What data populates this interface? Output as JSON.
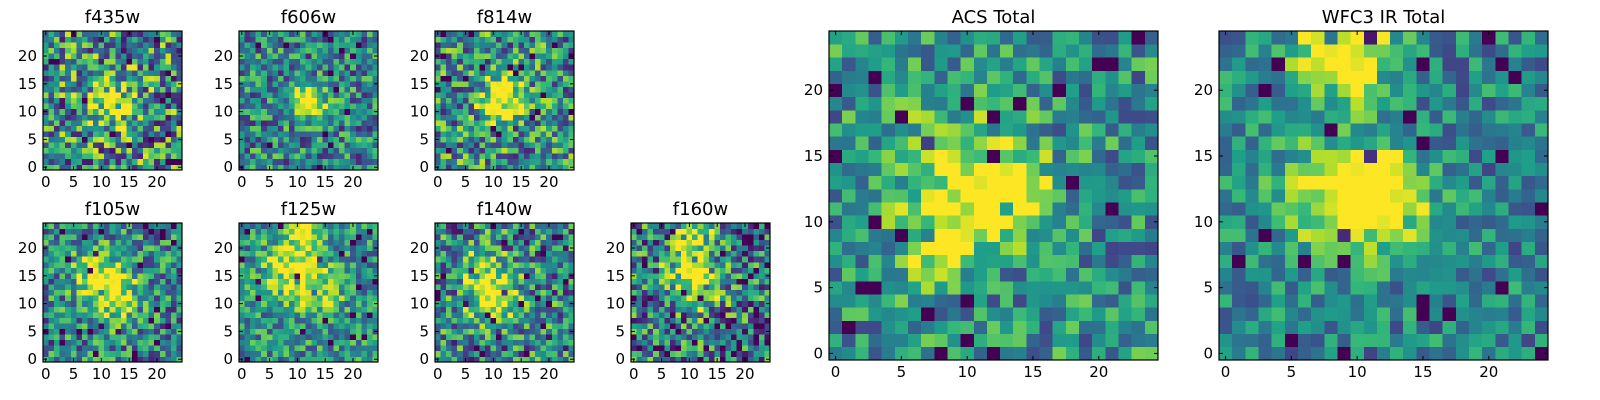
{
  "chart_data": [
    {
      "type": "heatmap",
      "title": "f435w",
      "xticks": [
        0,
        5,
        10,
        15,
        20
      ],
      "yticks": [
        0,
        5,
        10,
        15,
        20
      ],
      "xlim": [
        0,
        24
      ],
      "ylim": [
        0,
        24
      ],
      "grid_size": 25,
      "colormap": "viridis",
      "peak_description": "noisy field, faint central source near (12, 12)"
    },
    {
      "type": "heatmap",
      "title": "f606w",
      "xticks": [
        0,
        5,
        10,
        15,
        20
      ],
      "yticks": [
        0,
        5,
        10,
        15,
        20
      ],
      "xlim": [
        0,
        24
      ],
      "ylim": [
        0,
        24
      ],
      "grid_size": 25,
      "colormap": "viridis",
      "peak_description": "bright compact source near (12, 12)"
    },
    {
      "type": "heatmap",
      "title": "f814w",
      "xticks": [
        0,
        5,
        10,
        15,
        20
      ],
      "yticks": [
        0,
        5,
        10,
        15,
        20
      ],
      "xlim": [
        0,
        24
      ],
      "ylim": [
        0,
        24
      ],
      "grid_size": 25,
      "colormap": "viridis",
      "peak_description": "bright source near (12, 12)"
    },
    {
      "type": "heatmap",
      "title": "f105w",
      "xticks": [
        0,
        5,
        10,
        15,
        20
      ],
      "yticks": [
        0,
        5,
        10,
        15,
        20
      ],
      "xlim": [
        0,
        24
      ],
      "ylim": [
        0,
        24
      ],
      "grid_size": 25,
      "colormap": "viridis",
      "peak_description": "extended emission, peak near (12, 12)"
    },
    {
      "type": "heatmap",
      "title": "f125w",
      "xticks": [
        0,
        5,
        10,
        15,
        20
      ],
      "yticks": [
        0,
        5,
        10,
        15,
        20
      ],
      "xlim": [
        0,
        24
      ],
      "ylim": [
        0,
        24
      ],
      "grid_size": 25,
      "colormap": "viridis",
      "peak_description": "extended emission, peaks near (9, 16) and (11, 23)"
    },
    {
      "type": "heatmap",
      "title": "f140w",
      "xticks": [
        0,
        5,
        10,
        15,
        20
      ],
      "yticks": [
        0,
        5,
        10,
        15,
        20
      ],
      "xlim": [
        0,
        24
      ],
      "ylim": [
        0,
        24
      ],
      "grid_size": 25,
      "colormap": "viridis",
      "peak_description": "bright peak near (10, 11)"
    },
    {
      "type": "heatmap",
      "title": "f160w",
      "xticks": [
        0,
        5,
        10,
        15,
        20
      ],
      "yticks": [
        0,
        5,
        10,
        15,
        20
      ],
      "xlim": [
        0,
        24
      ],
      "ylim": [
        0,
        24
      ],
      "grid_size": 25,
      "colormap": "viridis",
      "peak_description": "peaks near (11, 23) and (12, 13)"
    },
    {
      "type": "heatmap",
      "title": "ACS Total",
      "xticks": [
        0,
        5,
        10,
        15,
        20
      ],
      "yticks": [
        0,
        5,
        10,
        15,
        20
      ],
      "xlim": [
        0,
        24
      ],
      "ylim": [
        0,
        24
      ],
      "grid_size": 25,
      "colormap": "viridis",
      "peak_description": "bright source near (13, 12), secondary near (8, 8)"
    },
    {
      "type": "heatmap",
      "title": "WFC3 IR Total",
      "xticks": [
        0,
        5,
        10,
        15,
        20
      ],
      "yticks": [
        0,
        5,
        10,
        15,
        20
      ],
      "xlim": [
        0,
        24
      ],
      "ylim": [
        0,
        24
      ],
      "grid_size": 25,
      "colormap": "viridis",
      "peak_description": "peaks near (9, 23) and (12, 12)"
    }
  ]
}
